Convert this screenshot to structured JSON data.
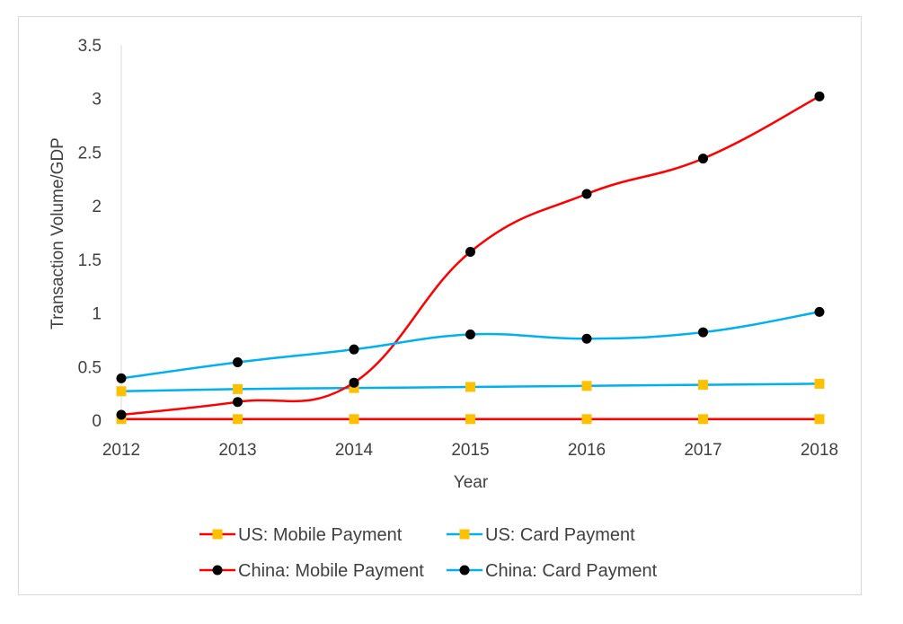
{
  "chart_data": {
    "type": "line",
    "title": "",
    "xlabel": "Year",
    "ylabel": "Transaction Volume/GDP",
    "categories": [
      "2012",
      "2013",
      "2014",
      "2015",
      "2016",
      "2017",
      "2018"
    ],
    "yticks": [
      "0",
      "0.5",
      "1",
      "1.5",
      "2",
      "2.5",
      "3",
      "3.5"
    ],
    "ylim": [
      0,
      3.5
    ],
    "grid": false,
    "legend_position": "bottom",
    "series": [
      {
        "name": "US: Mobile Payment",
        "color": "#ff0000",
        "marker": "square",
        "marker_color": "#ffc000",
        "values": [
          0.01,
          0.01,
          0.01,
          0.01,
          0.01,
          0.01,
          0.01
        ]
      },
      {
        "name": "US: Card Payment",
        "color": "#00b0f0",
        "marker": "square",
        "marker_color": "#ffc000",
        "values": [
          0.27,
          0.29,
          0.3,
          0.31,
          0.32,
          0.33,
          0.34
        ]
      },
      {
        "name": "China: Mobile Payment",
        "color": "#ff0000",
        "marker": "circle",
        "marker_color": "#000000",
        "values": [
          0.05,
          0.17,
          0.35,
          1.57,
          2.11,
          2.44,
          3.02
        ]
      },
      {
        "name": "China: Card Payment",
        "color": "#00b0f0",
        "marker": "circle",
        "marker_color": "#000000",
        "values": [
          0.39,
          0.54,
          0.66,
          0.8,
          0.76,
          0.82,
          1.01
        ]
      }
    ]
  }
}
